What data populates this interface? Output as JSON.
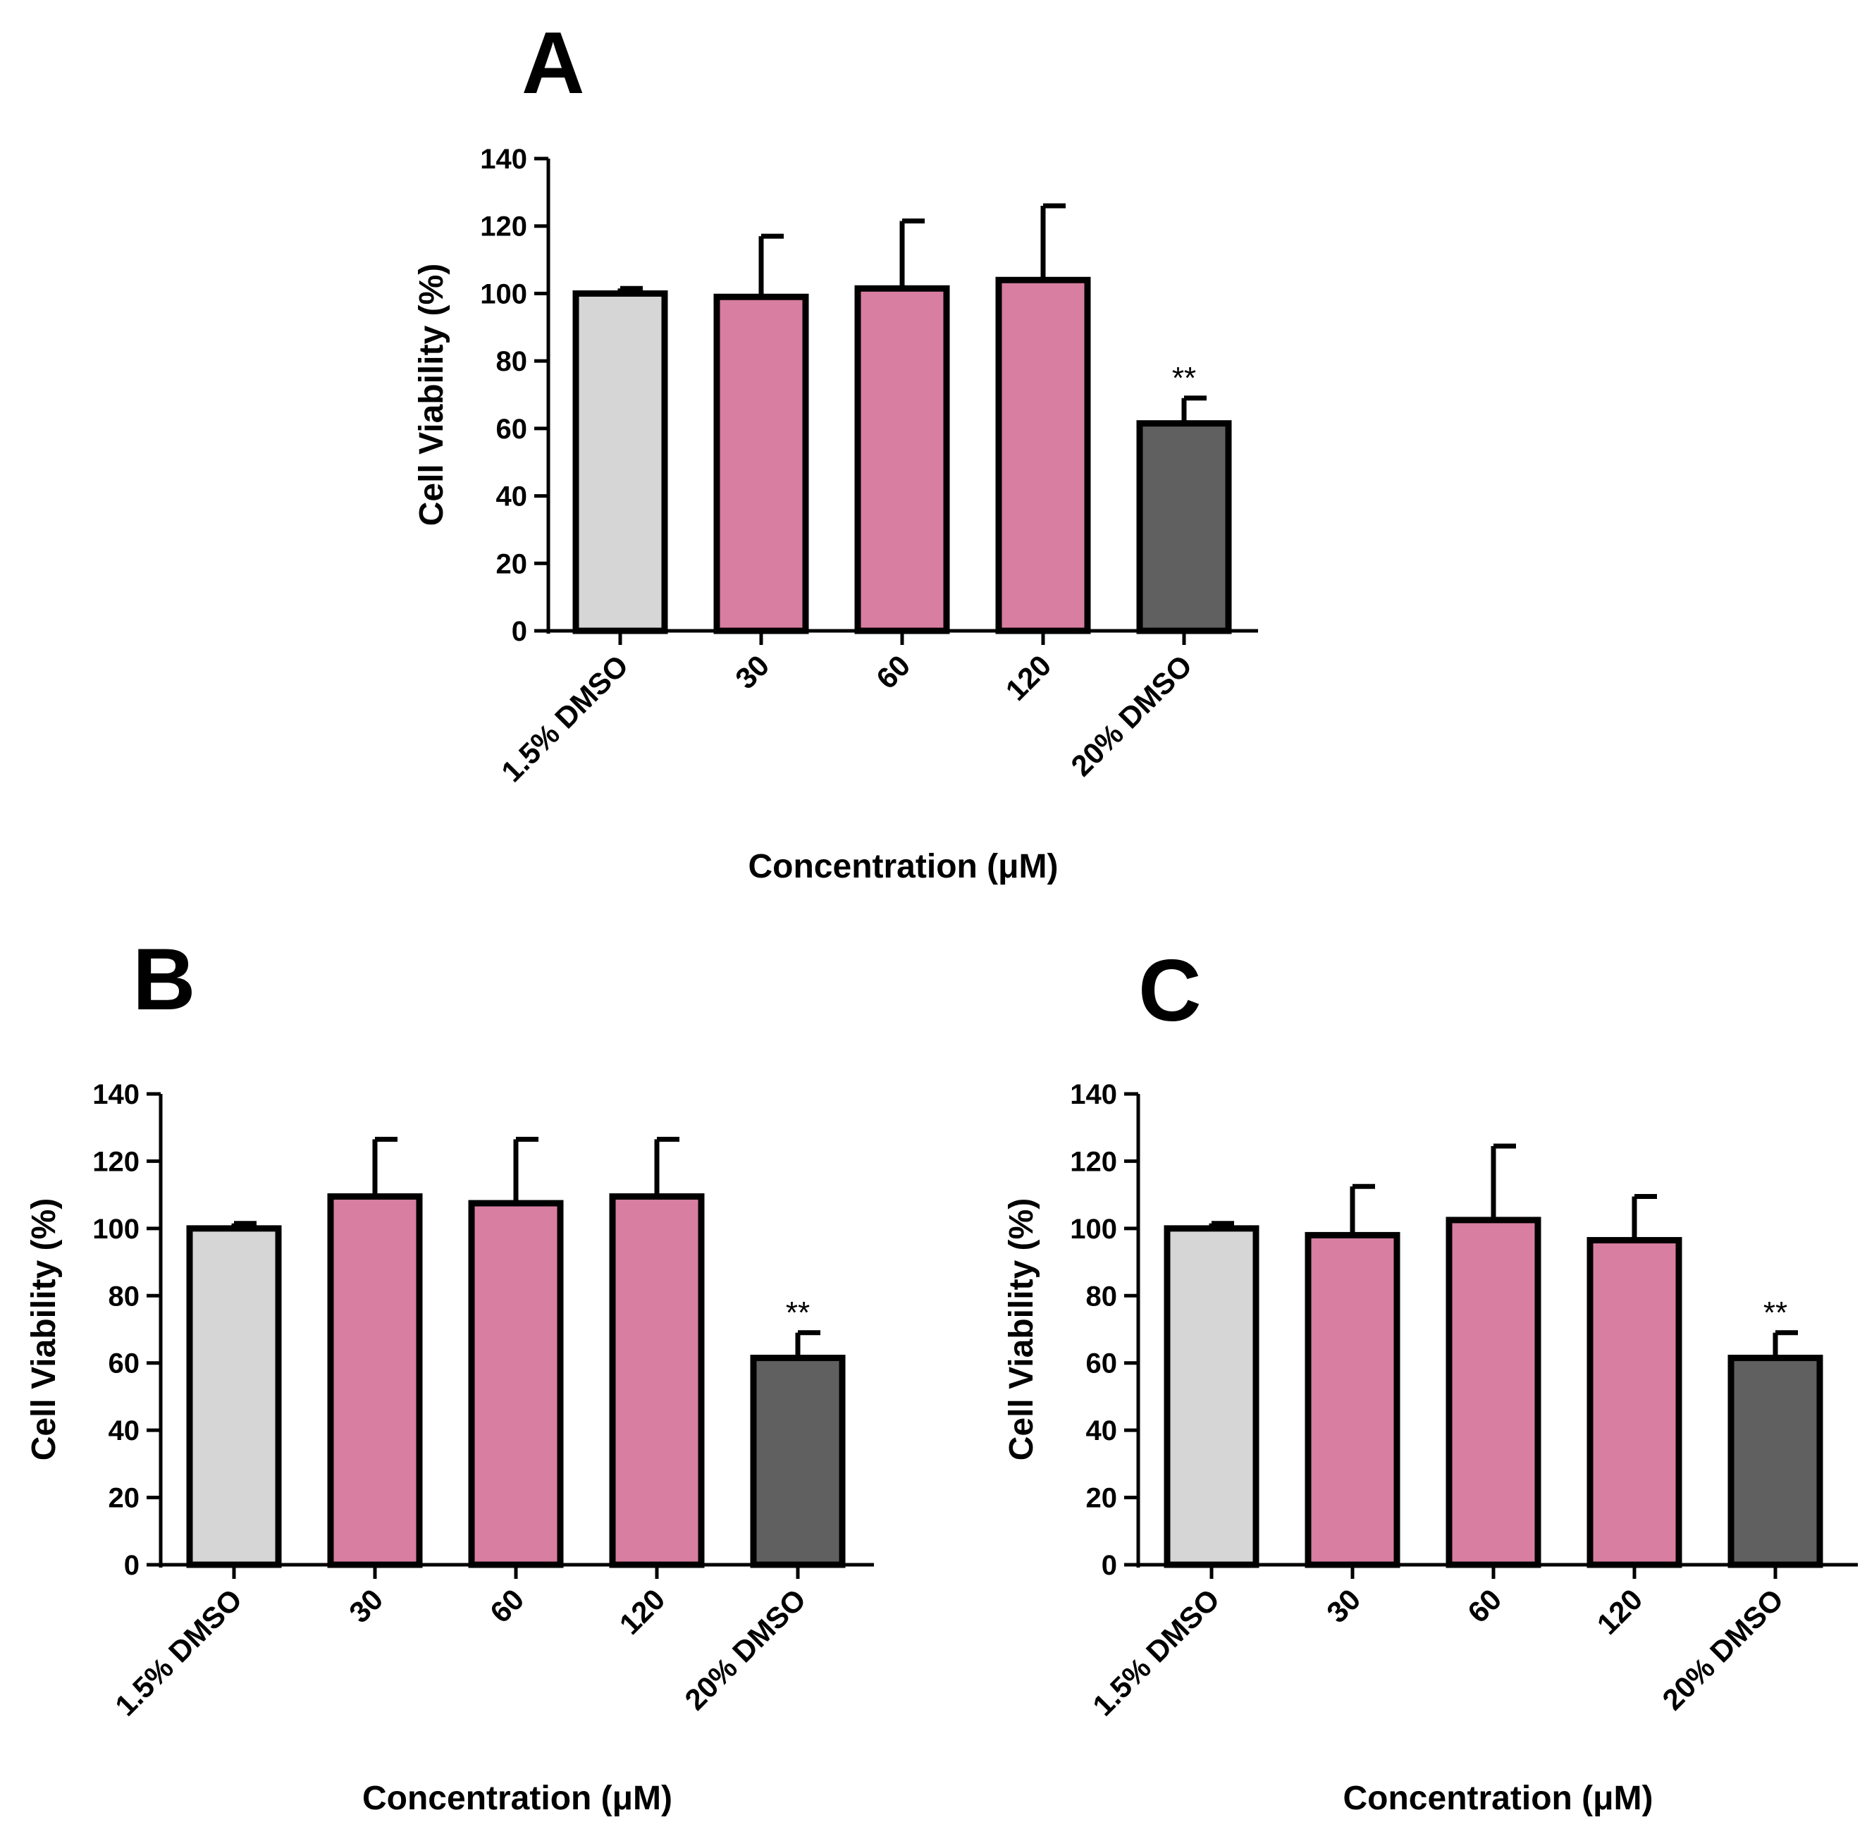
{
  "figure": {
    "background": "#ffffff",
    "colors": {
      "control": "#d6d6d6",
      "treatment": "#d87ea0",
      "positive_control": "#606060",
      "stroke": "#000000"
    }
  },
  "chart_data": [
    {
      "panel": "A",
      "type": "bar",
      "categories": [
        "1.5% DMSO",
        "30",
        "60",
        "120",
        "20% DMSO"
      ],
      "values": [
        100,
        99,
        101.5,
        104,
        61.5
      ],
      "error_plus": [
        1.5,
        18,
        20,
        22,
        7.5
      ],
      "annotations": [
        "",
        "",
        "",
        "",
        "**"
      ],
      "fill_keys": [
        "control",
        "treatment",
        "treatment",
        "treatment",
        "positive_control"
      ],
      "xlabel": "Concentration (μM)",
      "ylabel": "Cell Viability (%)",
      "ylim": [
        0,
        140
      ],
      "yticks": [
        "0",
        "20",
        "40",
        "60",
        "80",
        "100",
        "120",
        "140"
      ],
      "grid": false
    },
    {
      "panel": "B",
      "type": "bar",
      "categories": [
        "1.5% DMSO",
        "30",
        "60",
        "120",
        "20% DMSO"
      ],
      "values": [
        100,
        109.5,
        107.5,
        109.5,
        61.5
      ],
      "error_plus": [
        1.5,
        17,
        19,
        17,
        7.5
      ],
      "annotations": [
        "",
        "",
        "",
        "",
        "**"
      ],
      "fill_keys": [
        "control",
        "treatment",
        "treatment",
        "treatment",
        "positive_control"
      ],
      "xlabel": "Concentration (μM)",
      "ylabel": "Cell Viability (%)",
      "ylim": [
        0,
        140
      ],
      "yticks": [
        "0",
        "20",
        "40",
        "60",
        "80",
        "100",
        "120",
        "140"
      ],
      "grid": false
    },
    {
      "panel": "C",
      "type": "bar",
      "categories": [
        "1.5% DMSO",
        "30",
        "60",
        "120",
        "20% DMSO"
      ],
      "values": [
        100,
        98,
        102.5,
        96.5,
        61.5
      ],
      "error_plus": [
        1.5,
        14.5,
        22,
        13,
        7.5
      ],
      "annotations": [
        "",
        "",
        "",
        "",
        "**"
      ],
      "fill_keys": [
        "control",
        "treatment",
        "treatment",
        "treatment",
        "positive_control"
      ],
      "xlabel": "Concentration (μM)",
      "ylabel": "Cell Viability (%)",
      "ylim": [
        0,
        140
      ],
      "yticks": [
        "0",
        "20",
        "40",
        "60",
        "80",
        "100",
        "120",
        "140"
      ],
      "grid": false
    }
  ]
}
